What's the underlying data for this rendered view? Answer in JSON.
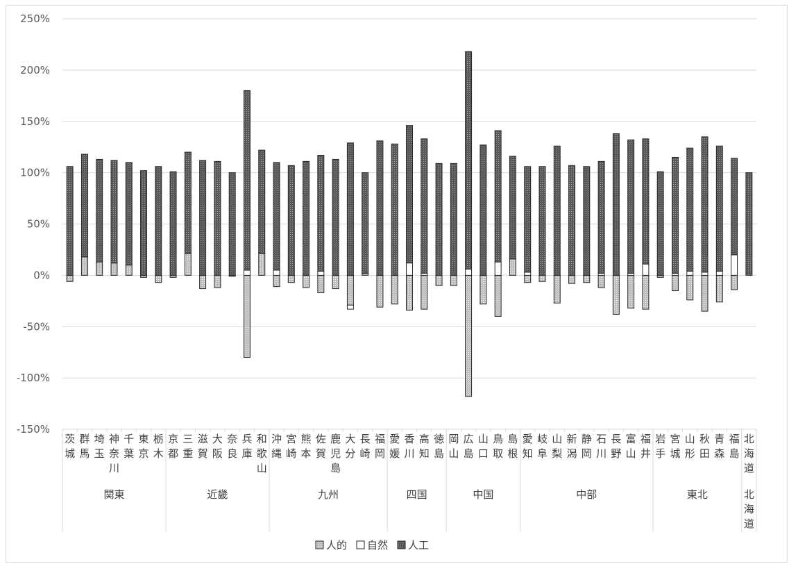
{
  "chart_data": {
    "type": "bar",
    "stacked": true,
    "ylim": [
      -150,
      250
    ],
    "y_unit": "%",
    "yticks": [
      "-150%",
      "-100%",
      "-50%",
      "0%",
      "50%",
      "100%",
      "150%",
      "200%",
      "250%"
    ],
    "grid": true,
    "legend_position": "bottom",
    "colors": {
      "人的": "#bfbfbf",
      "自然": "#ffffff",
      "人工": "#595959",
      "edge": "#262626"
    },
    "categories": [
      {
        "lines": [
          "茨",
          "城"
        ],
        "group": "関東"
      },
      {
        "lines": [
          "群",
          "馬"
        ],
        "group": "関東"
      },
      {
        "lines": [
          "埼",
          "玉"
        ],
        "group": "関東"
      },
      {
        "lines": [
          "神",
          "奈",
          "川"
        ],
        "group": "関東"
      },
      {
        "lines": [
          "千",
          "葉"
        ],
        "group": "関東"
      },
      {
        "lines": [
          "東",
          "京"
        ],
        "group": "関東"
      },
      {
        "lines": [
          "栃",
          "木"
        ],
        "group": "関東"
      },
      {
        "lines": [
          "京",
          "都"
        ],
        "group": "近畿"
      },
      {
        "lines": [
          "三",
          "重"
        ],
        "group": "近畿"
      },
      {
        "lines": [
          "滋",
          "賀"
        ],
        "group": "近畿"
      },
      {
        "lines": [
          "大",
          "阪"
        ],
        "group": "近畿"
      },
      {
        "lines": [
          "奈",
          "良"
        ],
        "group": "近畿"
      },
      {
        "lines": [
          "兵",
          "庫"
        ],
        "group": "近畿"
      },
      {
        "lines": [
          "和",
          "歌",
          "山"
        ],
        "group": "近畿"
      },
      {
        "lines": [
          "沖",
          "縄"
        ],
        "group": "九州"
      },
      {
        "lines": [
          "宮",
          "崎"
        ],
        "group": "九州"
      },
      {
        "lines": [
          "熊",
          "本"
        ],
        "group": "九州"
      },
      {
        "lines": [
          "佐",
          "賀"
        ],
        "group": "九州"
      },
      {
        "lines": [
          "鹿",
          "児",
          "島"
        ],
        "group": "九州"
      },
      {
        "lines": [
          "大",
          "分"
        ],
        "group": "九州"
      },
      {
        "lines": [
          "長",
          "崎"
        ],
        "group": "九州"
      },
      {
        "lines": [
          "福",
          "岡"
        ],
        "group": "九州"
      },
      {
        "lines": [
          "愛",
          "媛"
        ],
        "group": "四国"
      },
      {
        "lines": [
          "香",
          "川"
        ],
        "group": "四国"
      },
      {
        "lines": [
          "高",
          "知"
        ],
        "group": "四国"
      },
      {
        "lines": [
          "徳",
          "島"
        ],
        "group": "四国"
      },
      {
        "lines": [
          "岡",
          "山"
        ],
        "group": "中国"
      },
      {
        "lines": [
          "広",
          "島"
        ],
        "group": "中国"
      },
      {
        "lines": [
          "山",
          "口"
        ],
        "group": "中国"
      },
      {
        "lines": [
          "鳥",
          "取"
        ],
        "group": "中国"
      },
      {
        "lines": [
          "島",
          "根"
        ],
        "group": "中国"
      },
      {
        "lines": [
          "愛",
          "知"
        ],
        "group": "中部"
      },
      {
        "lines": [
          "岐",
          "阜"
        ],
        "group": "中部"
      },
      {
        "lines": [
          "山",
          "梨"
        ],
        "group": "中部"
      },
      {
        "lines": [
          "新",
          "潟"
        ],
        "group": "中部"
      },
      {
        "lines": [
          "静",
          "岡"
        ],
        "group": "中部"
      },
      {
        "lines": [
          "石",
          "川"
        ],
        "group": "中部"
      },
      {
        "lines": [
          "長",
          "野"
        ],
        "group": "中部"
      },
      {
        "lines": [
          "富",
          "山"
        ],
        "group": "中部"
      },
      {
        "lines": [
          "福",
          "井"
        ],
        "group": "中部"
      },
      {
        "lines": [
          "岩",
          "手"
        ],
        "group": "東北"
      },
      {
        "lines": [
          "宮",
          "城"
        ],
        "group": "東北"
      },
      {
        "lines": [
          "山",
          "形"
        ],
        "group": "東北"
      },
      {
        "lines": [
          "秋",
          "田"
        ],
        "group": "東北"
      },
      {
        "lines": [
          "青",
          "森"
        ],
        "group": "東北"
      },
      {
        "lines": [
          "福",
          "島"
        ],
        "group": "東北"
      },
      {
        "lines": [
          "北",
          "海",
          "道"
        ],
        "group": "北海道"
      }
    ],
    "groups": [
      {
        "label": [
          "関東"
        ],
        "count": 7
      },
      {
        "label": [
          "近畿"
        ],
        "count": 7
      },
      {
        "label": [
          "九州"
        ],
        "count": 8
      },
      {
        "label": [
          "四国"
        ],
        "count": 4
      },
      {
        "label": [
          "中国"
        ],
        "count": 5
      },
      {
        "label": [
          "中部"
        ],
        "count": 9
      },
      {
        "label": [
          "東北"
        ],
        "count": 6
      },
      {
        "label": [
          "北",
          "海",
          "道"
        ],
        "count": 1
      }
    ],
    "series": [
      {
        "name": "人的",
        "pattern": "dots-light",
        "values": [
          -6,
          18,
          13,
          12,
          10,
          -2,
          -7,
          -2,
          21,
          -13,
          -12,
          -1,
          -80,
          21,
          -11,
          -7,
          -12,
          -17,
          -13,
          -29,
          2,
          -31,
          -28,
          -34,
          -33,
          -10,
          -10,
          -118,
          -28,
          -40,
          16,
          -7,
          -6,
          -27,
          -8,
          -7,
          -12,
          -38,
          -32,
          -33,
          -2,
          -15,
          -24,
          -35,
          -26,
          -14,
          0
        ]
      },
      {
        "name": "自然",
        "pattern": "none",
        "values": [
          0,
          0,
          0,
          0,
          0,
          0,
          0,
          0,
          0,
          0,
          0,
          0,
          5,
          0,
          5,
          0,
          0,
          4,
          0,
          -4,
          0,
          0,
          0,
          12,
          2,
          0,
          0,
          6,
          0,
          13,
          0,
          3,
          0,
          0,
          0,
          0,
          2,
          0,
          2,
          11,
          0,
          2,
          4,
          3,
          4,
          20,
          1
        ]
      },
      {
        "name": "人工",
        "pattern": "dots-dark",
        "values": [
          106,
          100,
          100,
          100,
          100,
          102,
          106,
          101,
          99,
          112,
          111,
          100,
          175,
          101,
          105,
          107,
          111,
          113,
          113,
          129,
          98,
          131,
          128,
          134,
          131,
          109,
          109,
          212,
          127,
          128,
          100,
          103,
          106,
          126,
          107,
          106,
          109,
          138,
          130,
          122,
          101,
          113,
          120,
          132,
          122,
          94,
          99
        ]
      }
    ]
  }
}
